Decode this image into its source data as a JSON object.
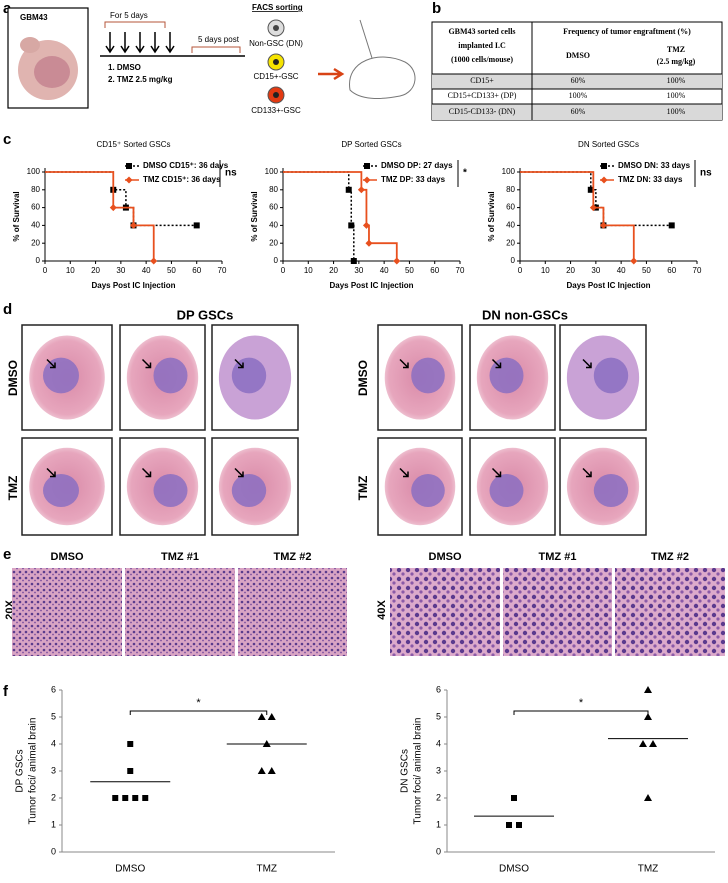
{
  "panel_labels": [
    "a",
    "b",
    "c",
    "d",
    "e",
    "f"
  ],
  "panel_a": {
    "model": "GBM43",
    "treatment_period": "For 5 days",
    "post_period": "5 days post",
    "treatments": [
      "1.  DMSO",
      "2.  TMZ 2.5 mg/kg"
    ],
    "facs_title": "FACS sorting",
    "populations": [
      "Non-GSC (DN)",
      "CD15+-GSC",
      "CD133+-GSC"
    ]
  },
  "table": {
    "header": [
      "GBM43 sorted cells",
      "implanted I.C",
      "(1000 cells/mouse)"
    ],
    "group_header": "Frequency of tumor engraftment (%)",
    "columns": [
      "DMSO",
      "TMZ",
      "(2.5 mg/kg)"
    ],
    "rows": [
      [
        "CD15+",
        "60%",
        "100%"
      ],
      [
        "CD15+CD133+ (DP)",
        "100%",
        "100%"
      ],
      [
        "CD15-CD133- (DN)",
        "60%",
        "100%"
      ]
    ]
  },
  "chart_data": [
    {
      "type": "step",
      "title": "CD15⁺ Sorted GSCs",
      "xlabel": "Days Post IC Injection",
      "ylabel": "% of Survival",
      "xlim": [
        0,
        70
      ],
      "xticks": [
        0,
        10,
        20,
        30,
        40,
        50,
        60,
        70
      ],
      "ylim": [
        0,
        100
      ],
      "yticks": [
        0,
        20,
        40,
        60,
        80,
        100
      ],
      "significance": "ns",
      "series": [
        {
          "name": "DMSO CD15⁺: 36 days",
          "color": "#000000",
          "dash": true,
          "marker": "square",
          "x": [
            0,
            27,
            32,
            35,
            60
          ],
          "values": [
            100,
            80,
            60,
            40,
            40
          ]
        },
        {
          "name": "TMZ CD15⁺: 36 days",
          "color": "#e8501e",
          "dash": false,
          "marker": "diamond",
          "x": [
            0,
            27,
            35,
            43
          ],
          "values": [
            100,
            60,
            40,
            0
          ]
        }
      ]
    },
    {
      "type": "step",
      "title": "DP Sorted GSCs",
      "xlabel": "Days Post IC Injection",
      "ylabel": "% of Survival",
      "xlim": [
        0,
        70
      ],
      "xticks": [
        0,
        10,
        20,
        30,
        40,
        50,
        60,
        70
      ],
      "ylim": [
        0,
        100
      ],
      "yticks": [
        0,
        20,
        40,
        60,
        80,
        100
      ],
      "significance": "*",
      "series": [
        {
          "name": "DMSO DP: 27 days",
          "color": "#000000",
          "dash": true,
          "marker": "square",
          "x": [
            0,
            26,
            27,
            28
          ],
          "values": [
            100,
            80,
            40,
            0
          ]
        },
        {
          "name": "TMZ DP: 33 days",
          "color": "#e8501e",
          "dash": false,
          "marker": "diamond",
          "x": [
            0,
            31,
            33,
            34,
            45
          ],
          "values": [
            100,
            80,
            40,
            20,
            0
          ]
        }
      ]
    },
    {
      "type": "step",
      "title": "DN Sorted GSCs",
      "xlabel": "Days Post IC Injection",
      "ylabel": "% of Survival",
      "xlim": [
        0,
        70
      ],
      "xticks": [
        0,
        10,
        20,
        30,
        40,
        50,
        60,
        70
      ],
      "ylim": [
        0,
        100
      ],
      "yticks": [
        0,
        20,
        40,
        60,
        80,
        100
      ],
      "significance": "ns",
      "series": [
        {
          "name": "DMSO DN: 33 days",
          "color": "#000000",
          "dash": true,
          "marker": "square",
          "x": [
            0,
            28,
            30,
            33,
            60
          ],
          "values": [
            100,
            80,
            60,
            40,
            40
          ]
        },
        {
          "name": "TMZ DN: 33 days",
          "color": "#e8501e",
          "dash": false,
          "marker": "diamond",
          "x": [
            0,
            29,
            33,
            45
          ],
          "values": [
            100,
            60,
            40,
            0
          ]
        }
      ]
    },
    {
      "type": "dot",
      "ylabel": [
        "DP GSCs",
        "Tumor foci/ animal brain"
      ],
      "categories": [
        "DMSO",
        "TMZ"
      ],
      "markers": [
        "square",
        "triangle"
      ],
      "values": [
        [
          4,
          3,
          2,
          2,
          2,
          2
        ],
        [
          5,
          5,
          4,
          3,
          3
        ]
      ],
      "means": [
        2.6,
        4
      ],
      "ylim": [
        0,
        6
      ],
      "yticks": [
        0,
        1,
        2,
        3,
        4,
        5,
        6
      ],
      "significance": "*"
    },
    {
      "type": "dot",
      "ylabel": [
        "DN GSCs",
        "Tumor foci/ animal brain"
      ],
      "categories": [
        "DMSO",
        "TMZ"
      ],
      "markers": [
        "square",
        "triangle"
      ],
      "values": [
        [
          2,
          1,
          1
        ],
        [
          6,
          5,
          4,
          4,
          2
        ]
      ],
      "means": [
        1.33,
        4.2
      ],
      "ylim": [
        0,
        6
      ],
      "yticks": [
        0,
        1,
        2,
        3,
        4,
        5,
        6
      ],
      "significance": "*"
    }
  ],
  "panel_d": {
    "groups": [
      "DP GSCs",
      "DN non-GSCs"
    ],
    "rows": [
      "DMSO",
      "TMZ"
    ]
  },
  "panel_e": {
    "columns": [
      "DMSO",
      "TMZ #1",
      "TMZ #2"
    ],
    "magnifications": [
      "20X",
      "40X"
    ]
  }
}
